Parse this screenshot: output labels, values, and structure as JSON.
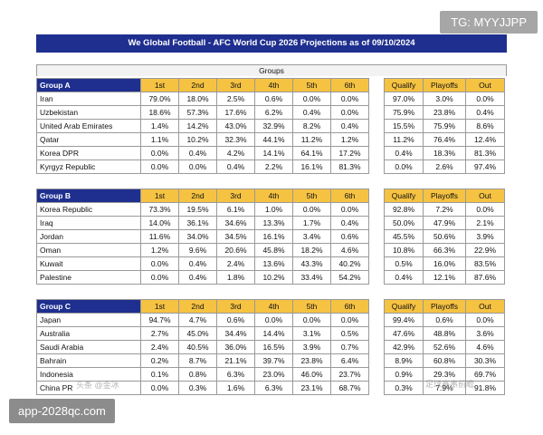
{
  "watermarks": {
    "top_right": "TG: MYYJJPP",
    "bottom_left": "app-2028qc.com",
    "overlay_left": "头条 @金冰",
    "overlay_right": "足球赛事前瞻"
  },
  "title": "We Global Football - AFC World Cup 2026 Projections as of 09/10/2024",
  "groups_label": "Groups",
  "place_headers": [
    "1st",
    "2nd",
    "3rd",
    "4th",
    "5th",
    "6th"
  ],
  "qual_headers": [
    "Qualify",
    "Playoffs",
    "Out"
  ],
  "groups": [
    {
      "name": "Group A",
      "teams": [
        {
          "team": "Iran",
          "p": [
            "79.0%",
            "18.0%",
            "2.5%",
            "0.6%",
            "0.0%",
            "0.0%"
          ],
          "q": [
            "97.0%",
            "3.0%",
            "0.0%"
          ]
        },
        {
          "team": "Uzbekistan",
          "p": [
            "18.6%",
            "57.3%",
            "17.6%",
            "6.2%",
            "0.4%",
            "0.0%"
          ],
          "q": [
            "75.9%",
            "23.8%",
            "0.4%"
          ]
        },
        {
          "team": "United Arab Emirates",
          "p": [
            "1.4%",
            "14.2%",
            "43.0%",
            "32.9%",
            "8.2%",
            "0.4%"
          ],
          "q": [
            "15.5%",
            "75.9%",
            "8.6%"
          ]
        },
        {
          "team": "Qatar",
          "p": [
            "1.1%",
            "10.2%",
            "32.3%",
            "44.1%",
            "11.2%",
            "1.2%"
          ],
          "q": [
            "11.2%",
            "76.4%",
            "12.4%"
          ]
        },
        {
          "team": "Korea DPR",
          "p": [
            "0.0%",
            "0.4%",
            "4.2%",
            "14.1%",
            "64.1%",
            "17.2%"
          ],
          "q": [
            "0.4%",
            "18.3%",
            "81.3%"
          ]
        },
        {
          "team": "Kyrgyz Republic",
          "p": [
            "0.0%",
            "0.0%",
            "0.4%",
            "2.2%",
            "16.1%",
            "81.3%"
          ],
          "q": [
            "0.0%",
            "2.6%",
            "97.4%"
          ]
        }
      ]
    },
    {
      "name": "Group B",
      "teams": [
        {
          "team": "Korea Republic",
          "p": [
            "73.3%",
            "19.5%",
            "6.1%",
            "1.0%",
            "0.0%",
            "0.0%"
          ],
          "q": [
            "92.8%",
            "7.2%",
            "0.0%"
          ]
        },
        {
          "team": "Iraq",
          "p": [
            "14.0%",
            "36.1%",
            "34.6%",
            "13.3%",
            "1.7%",
            "0.4%"
          ],
          "q": [
            "50.0%",
            "47.9%",
            "2.1%"
          ]
        },
        {
          "team": "Jordan",
          "p": [
            "11.6%",
            "34.0%",
            "34.5%",
            "16.1%",
            "3.4%",
            "0.6%"
          ],
          "q": [
            "45.5%",
            "50.6%",
            "3.9%"
          ]
        },
        {
          "team": "Oman",
          "p": [
            "1.2%",
            "9.6%",
            "20.6%",
            "45.8%",
            "18.2%",
            "4.6%"
          ],
          "q": [
            "10.8%",
            "66.3%",
            "22.9%"
          ]
        },
        {
          "team": "Kuwait",
          "p": [
            "0.0%",
            "0.4%",
            "2.4%",
            "13.6%",
            "43.3%",
            "40.2%"
          ],
          "q": [
            "0.5%",
            "16.0%",
            "83.5%"
          ]
        },
        {
          "team": "Palestine",
          "p": [
            "0.0%",
            "0.4%",
            "1.8%",
            "10.2%",
            "33.4%",
            "54.2%"
          ],
          "q": [
            "0.4%",
            "12.1%",
            "87.6%"
          ]
        }
      ]
    },
    {
      "name": "Group C",
      "teams": [
        {
          "team": "Japan",
          "p": [
            "94.7%",
            "4.7%",
            "0.6%",
            "0.0%",
            "0.0%",
            "0.0%"
          ],
          "q": [
            "99.4%",
            "0.6%",
            "0.0%"
          ]
        },
        {
          "team": "Australia",
          "p": [
            "2.7%",
            "45.0%",
            "34.4%",
            "14.4%",
            "3.1%",
            "0.5%"
          ],
          "q": [
            "47.6%",
            "48.8%",
            "3.6%"
          ]
        },
        {
          "team": "Saudi Arabia",
          "p": [
            "2.4%",
            "40.5%",
            "36.0%",
            "16.5%",
            "3.9%",
            "0.7%"
          ],
          "q": [
            "42.9%",
            "52.6%",
            "4.6%"
          ]
        },
        {
          "team": "Bahrain",
          "p": [
            "0.2%",
            "8.7%",
            "21.1%",
            "39.7%",
            "23.8%",
            "6.4%"
          ],
          "q": [
            "8.9%",
            "60.8%",
            "30.3%"
          ]
        },
        {
          "team": "Indonesia",
          "p": [
            "0.1%",
            "0.8%",
            "6.3%",
            "23.0%",
            "46.0%",
            "23.7%"
          ],
          "q": [
            "0.9%",
            "29.3%",
            "69.7%"
          ]
        },
        {
          "team": "China PR",
          "p": [
            "0.0%",
            "0.3%",
            "1.6%",
            "6.3%",
            "23.1%",
            "68.7%"
          ],
          "q": [
            "0.3%",
            "7.9%",
            "91.8%"
          ]
        }
      ]
    }
  ]
}
